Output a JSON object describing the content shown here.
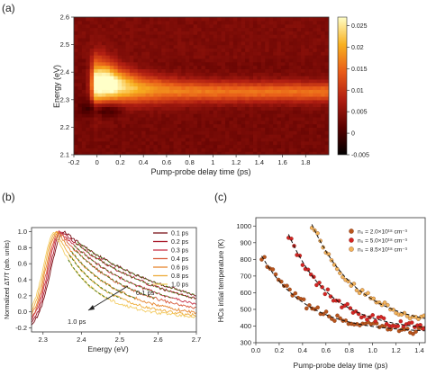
{
  "panels": {
    "a": {
      "label": "(a)"
    },
    "b": {
      "label": "(b)"
    },
    "c": {
      "label": "(c)"
    }
  },
  "chart_data": [
    {
      "panel": "a",
      "type": "heatmap",
      "xlabel": "Pump-probe delay time (ps)",
      "ylabel": "Energy (eV)",
      "xlim": [
        -0.2,
        2.0
      ],
      "ylim": [
        2.1,
        2.6
      ],
      "xticks": [
        "-0.2",
        "0",
        "0.2",
        "0.4",
        "0.6",
        "0.8",
        "1",
        "1.2",
        "1.4",
        "1.6",
        "1.8"
      ],
      "yticks": [
        "2.1",
        "2.2",
        "2.3",
        "2.4",
        "2.5",
        "2.6"
      ],
      "colorbar": {
        "min": -0.005,
        "max": 0.027,
        "ticks": [
          "0.025",
          "0.02",
          "0.015",
          "0.01",
          "0.005",
          "0",
          "-0.005"
        ],
        "tick_values": [
          0.025,
          0.02,
          0.015,
          0.01,
          0.005,
          0,
          -0.005
        ],
        "colors": [
          "#000000",
          "#5a0000",
          "#b01e12",
          "#e85a18",
          "#f8b020",
          "#ffffc8"
        ]
      },
      "features": {
        "background_value": 0.0035,
        "band": {
          "energy": 2.33,
          "width": 0.035,
          "peak_value": 0.027,
          "peak_time": 0.12,
          "decay_value": 0.0125
        },
        "early_peak": {
          "energy": 2.36,
          "time": 0.1
        },
        "bleach": {
          "energy": 2.27,
          "time": 0.05,
          "value": -0.004
        }
      },
      "grid": false
    },
    {
      "panel": "b",
      "type": "line",
      "xlabel": "Energy (eV)",
      "ylabel": "Normalized ΔT/T (arb. units)",
      "xlim": [
        2.27,
        2.7
      ],
      "ylim": [
        -0.25,
        1.05
      ],
      "xticks": [
        "2.3",
        "2.4",
        "2.5",
        "2.6",
        "2.7"
      ],
      "yticks": [
        "-0.2",
        "0.0",
        "0.2",
        "0.4",
        "0.6",
        "0.8",
        "1.0"
      ],
      "legend": "right",
      "annotations": [
        "0.1 ps",
        "1.0 ps"
      ],
      "series": [
        {
          "name": "0.1 ps",
          "color": "#7a1018",
          "peak": 2.355,
          "wL": 0.048,
          "wR": 0.27
        },
        {
          "name": "0.2 ps",
          "color": "#a8182a",
          "peak": 2.35,
          "wL": 0.046,
          "wR": 0.24
        },
        {
          "name": "0.3 ps",
          "color": "#c83248",
          "peak": 2.345,
          "wL": 0.044,
          "wR": 0.2
        },
        {
          "name": "0.4 ps",
          "color": "#d85a3a",
          "peak": 2.342,
          "wL": 0.043,
          "wR": 0.165
        },
        {
          "name": "0.6 ps",
          "color": "#e6852e",
          "peak": 2.338,
          "wL": 0.042,
          "wR": 0.13
        },
        {
          "name": "0.8 ps",
          "color": "#eeac3a",
          "peak": 2.334,
          "wL": 0.041,
          "wR": 0.105
        },
        {
          "name": "1.0 ps",
          "color": "#f3cc64",
          "peak": 2.33,
          "wL": 0.04,
          "wR": 0.085
        }
      ]
    },
    {
      "panel": "c",
      "type": "scatter",
      "xlabel": "Pump-probe delay time (ps)",
      "ylabel": "HCs intial temperature (K)",
      "xlim": [
        0.0,
        1.45
      ],
      "ylim": [
        300,
        1050
      ],
      "xticks": [
        "0.0",
        "0.2",
        "0.4",
        "0.6",
        "0.8",
        "1.0",
        "1.2",
        "1.4"
      ],
      "yticks": [
        "300",
        "400",
        "500",
        "600",
        "700",
        "800",
        "900",
        "1000"
      ],
      "legend": "top-right",
      "series": [
        {
          "name": "n₀ = 2.0×10¹⁸ cm⁻³",
          "color": "#b8551c",
          "t_start": 0.05,
          "T_start": 820,
          "T_end": 360,
          "tau": 0.38
        },
        {
          "name": "n₀ = 5.0×10¹⁸ cm⁻³",
          "color": "#d42424",
          "t_start": 0.28,
          "T_start": 950,
          "T_end": 370,
          "tau": 0.36
        },
        {
          "name": "n₀ = 8.5×10¹⁸ cm⁻³",
          "color": "#f2b45a",
          "t_start": 0.48,
          "T_start": 1010,
          "T_end": 390,
          "tau": 0.4
        }
      ]
    }
  ]
}
